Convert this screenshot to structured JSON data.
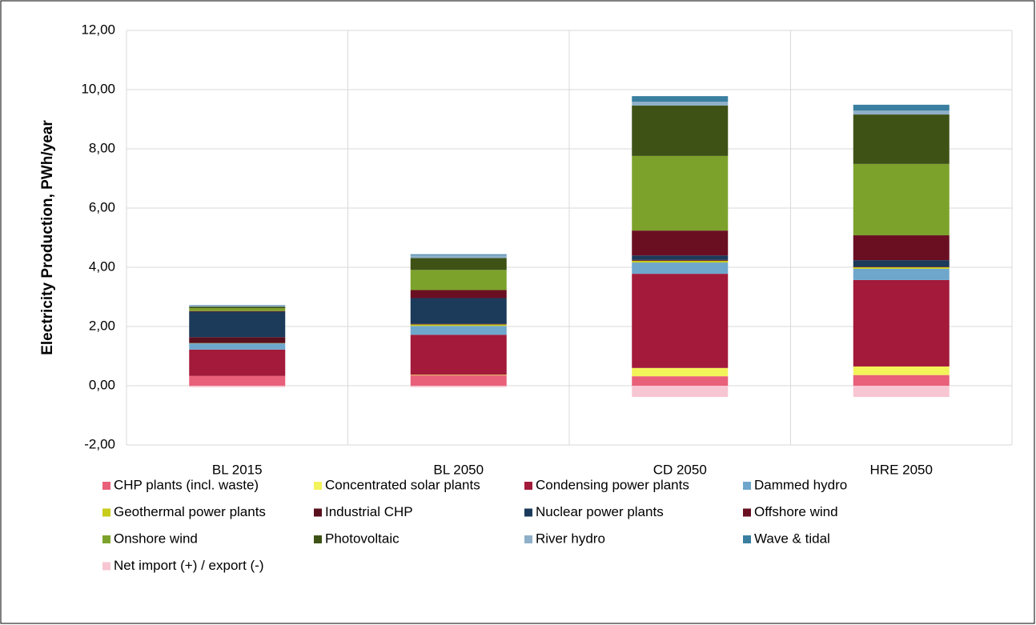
{
  "chart_data": {
    "type": "bar",
    "stacked": true,
    "ylabel": "Electricity Production, PWh/year",
    "categories": [
      "BL 2015",
      "BL 2050",
      "CD 2050",
      "HRE 2050"
    ],
    "ylim": [
      -2,
      12
    ],
    "yticks": [
      {
        "value": -2,
        "label": "-2,00"
      },
      {
        "value": 0,
        "label": "0,00"
      },
      {
        "value": 2,
        "label": "2,00"
      },
      {
        "value": 4,
        "label": "4,00"
      },
      {
        "value": 6,
        "label": "6,00"
      },
      {
        "value": 8,
        "label": "8,00"
      },
      {
        "value": 10,
        "label": "10,00"
      },
      {
        "value": 12,
        "label": "12,00"
      }
    ],
    "grid": true,
    "legend": "bottom",
    "series": [
      {
        "name": "CHP plants (incl. waste)",
        "color": "#e8607a",
        "values": [
          0.33,
          0.35,
          0.32,
          0.36
        ]
      },
      {
        "name": "Concentrated solar plants",
        "color": "#f3f35a",
        "values": [
          0,
          0.02,
          0.28,
          0.29
        ]
      },
      {
        "name": "Condensing power plants",
        "color": "#a31a3a",
        "values": [
          0.89,
          1.35,
          3.18,
          2.92
        ]
      },
      {
        "name": "Dammed hydro",
        "color": "#6ea6cc",
        "values": [
          0.21,
          0.3,
          0.38,
          0.38
        ]
      },
      {
        "name": "Geothermal power plants",
        "color": "#c8cc1a",
        "values": [
          0.01,
          0.05,
          0.06,
          0.05
        ]
      },
      {
        "name": "Industrial CHP",
        "color": "#5a0f1e",
        "values": [
          0.2,
          0.02,
          0.03,
          0.02
        ]
      },
      {
        "name": "Nuclear power plants",
        "color": "#1c3a5a",
        "values": [
          0.86,
          0.87,
          0.15,
          0.22
        ]
      },
      {
        "name": "Offshore wind",
        "color": "#6a0f22",
        "values": [
          0.02,
          0.27,
          0.84,
          0.84
        ]
      },
      {
        "name": "Onshore wind",
        "color": "#7da22c",
        "values": [
          0.1,
          0.68,
          2.52,
          2.41
        ]
      },
      {
        "name": "Photovoltaic",
        "color": "#3f5216",
        "values": [
          0.05,
          0.4,
          1.7,
          1.67
        ]
      },
      {
        "name": "River hydro",
        "color": "#8fb0c8",
        "values": [
          0.06,
          0.1,
          0.13,
          0.13
        ]
      },
      {
        "name": "Wave & tidal",
        "color": "#3a7fa0",
        "values": [
          0,
          0.03,
          0.19,
          0.2
        ]
      },
      {
        "name": "Net import (+) / export (-)",
        "color": "#f7c6d2",
        "values": [
          -0.05,
          -0.05,
          -0.38,
          -0.38
        ]
      }
    ]
  }
}
